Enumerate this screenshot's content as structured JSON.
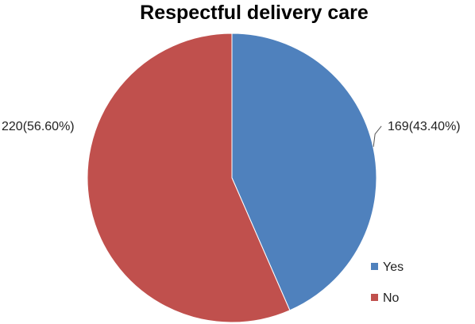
{
  "chart_data": {
    "type": "pie",
    "title": "Respectful delivery care",
    "slices": [
      {
        "name": "Yes",
        "value": 169,
        "percent": 43.4,
        "data_label": "169(43.40%)",
        "color": "#4F81BD"
      },
      {
        "name": "No",
        "value": 220,
        "percent": 56.6,
        "data_label": "220(56.60%)",
        "color": "#C0504D"
      }
    ],
    "start": "12 o'clock",
    "direction": "clockwise",
    "legend_position": "right-bottom"
  }
}
